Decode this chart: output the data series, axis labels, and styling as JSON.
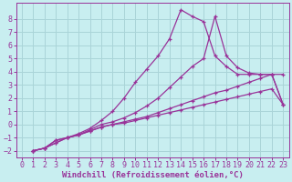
{
  "xlabel": "Windchill (Refroidissement éolien,°C)",
  "ylabel": "",
  "background_color": "#c8eef0",
  "grid_color": "#aad4d8",
  "line_color": "#993399",
  "xlim": [
    -0.5,
    23.5
  ],
  "ylim": [
    -2.5,
    9.2
  ],
  "xticks": [
    0,
    1,
    2,
    3,
    4,
    5,
    6,
    7,
    8,
    9,
    10,
    11,
    12,
    13,
    14,
    15,
    16,
    17,
    18,
    19,
    20,
    21,
    22,
    23
  ],
  "yticks": [
    -2,
    -1,
    0,
    1,
    2,
    3,
    4,
    5,
    6,
    7,
    8
  ],
  "line1_x": [
    1,
    2,
    3,
    4,
    5,
    6,
    7,
    8,
    9,
    10,
    11,
    12,
    13,
    14,
    15,
    16,
    17,
    18,
    19,
    20,
    21,
    22,
    23
  ],
  "line1_y": [
    -2,
    -1.8,
    -1.4,
    -1.0,
    -0.7,
    -0.3,
    0.3,
    1.0,
    2.0,
    3.2,
    4.2,
    5.2,
    6.5,
    8.7,
    8.2,
    7.8,
    5.2,
    4.4,
    3.8,
    3.8,
    3.8,
    3.8,
    3.8
  ],
  "line2_x": [
    1,
    2,
    3,
    4,
    5,
    6,
    7,
    8,
    9,
    10,
    11,
    12,
    13,
    14,
    15,
    16,
    17,
    18,
    19,
    20,
    21,
    22,
    23
  ],
  "line2_y": [
    -2,
    -1.8,
    -1.4,
    -1.0,
    -0.8,
    -0.4,
    0.0,
    0.2,
    0.5,
    0.9,
    1.4,
    2.0,
    2.8,
    3.6,
    4.4,
    5.0,
    8.2,
    5.2,
    4.3,
    3.9,
    3.8,
    3.8,
    1.5
  ],
  "line3_x": [
    1,
    2,
    3,
    4,
    5,
    6,
    7,
    8,
    9,
    10,
    11,
    12,
    13,
    14,
    15,
    16,
    17,
    18,
    19,
    20,
    21,
    22,
    23
  ],
  "line3_y": [
    -2,
    -1.8,
    -1.2,
    -1.0,
    -0.8,
    -0.5,
    -0.2,
    0.0,
    0.2,
    0.4,
    0.6,
    0.9,
    1.2,
    1.5,
    1.8,
    2.1,
    2.4,
    2.6,
    2.9,
    3.2,
    3.5,
    3.8,
    1.5
  ],
  "line4_x": [
    1,
    2,
    3,
    4,
    5,
    6,
    7,
    8,
    9,
    10,
    11,
    12,
    13,
    14,
    15,
    16,
    17,
    18,
    19,
    20,
    21,
    22,
    23
  ],
  "line4_y": [
    -2,
    -1.8,
    -1.2,
    -1.0,
    -0.8,
    -0.5,
    -0.2,
    0.0,
    0.1,
    0.3,
    0.5,
    0.7,
    0.9,
    1.1,
    1.3,
    1.5,
    1.7,
    1.9,
    2.1,
    2.3,
    2.5,
    2.7,
    1.5
  ],
  "xlabel_fontsize": 6.5,
  "tick_fontsize": 6,
  "font_family": "monospace"
}
